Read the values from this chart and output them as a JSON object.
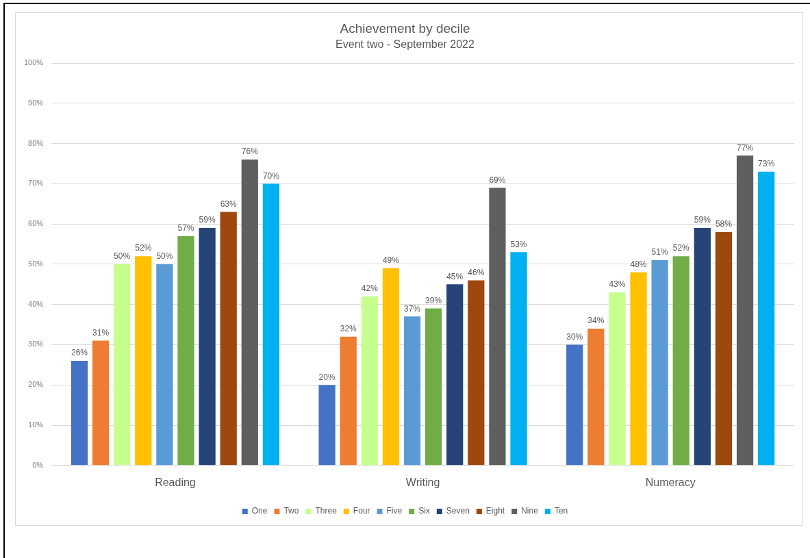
{
  "chart_data": {
    "type": "bar",
    "title": "Achievement by decile",
    "subtitle": "Event two - September 2022",
    "categories": [
      "Reading",
      "Writing",
      "Numeracy"
    ],
    "series": [
      {
        "name": "One",
        "color": "#4472c4",
        "values": [
          26,
          20,
          30
        ],
        "value_labels": [
          "26%",
          "20%",
          "30%"
        ]
      },
      {
        "name": "Two",
        "color": "#ed7d31",
        "values": [
          31,
          32,
          34
        ],
        "value_labels": [
          "31%",
          "32%",
          "34%"
        ]
      },
      {
        "name": "Three",
        "color": "#c6ff8e",
        "values": [
          50,
          42,
          43
        ],
        "value_labels": [
          "50%",
          "42%",
          "43%"
        ]
      },
      {
        "name": "Four",
        "color": "#ffc000",
        "values": [
          52,
          49,
          48
        ],
        "value_labels": [
          "52%",
          "49%",
          "48%"
        ]
      },
      {
        "name": "Five",
        "color": "#5b9bd5",
        "values": [
          50,
          37,
          51
        ],
        "value_labels": [
          "50%",
          "37%",
          "51%"
        ]
      },
      {
        "name": "Six",
        "color": "#70ad47",
        "values": [
          57,
          39,
          52
        ],
        "value_labels": [
          "57%",
          "39%",
          "52%"
        ]
      },
      {
        "name": "Seven",
        "color": "#264478",
        "values": [
          59,
          45,
          59
        ],
        "value_labels": [
          "59%",
          "45%",
          "59%"
        ]
      },
      {
        "name": "Eight",
        "color": "#9e480e",
        "values": [
          63,
          46,
          58
        ],
        "value_labels": [
          "63%",
          "46%",
          "58%"
        ]
      },
      {
        "name": "Nine",
        "color": "#5f5f5f",
        "values": [
          76,
          69,
          77
        ],
        "value_labels": [
          "76%",
          "69%",
          "77%"
        ]
      },
      {
        "name": "Ten",
        "color": "#00b0f0",
        "values": [
          70,
          53,
          73
        ],
        "value_labels": [
          "70%",
          "53%",
          "73%"
        ]
      }
    ],
    "ylim": [
      0,
      100
    ],
    "yticks": [
      {
        "value": 0,
        "label": "0%"
      },
      {
        "value": 10,
        "label": "10%"
      },
      {
        "value": 20,
        "label": "20%"
      },
      {
        "value": 30,
        "label": "30%"
      },
      {
        "value": 40,
        "label": "40%"
      },
      {
        "value": 50,
        "label": "50%"
      },
      {
        "value": 60,
        "label": "60%"
      },
      {
        "value": 70,
        "label": "70%"
      },
      {
        "value": 80,
        "label": "80%"
      },
      {
        "value": 90,
        "label": "90%"
      },
      {
        "value": 100,
        "label": "100%"
      }
    ],
    "grid": "y",
    "legend": "bottom"
  }
}
